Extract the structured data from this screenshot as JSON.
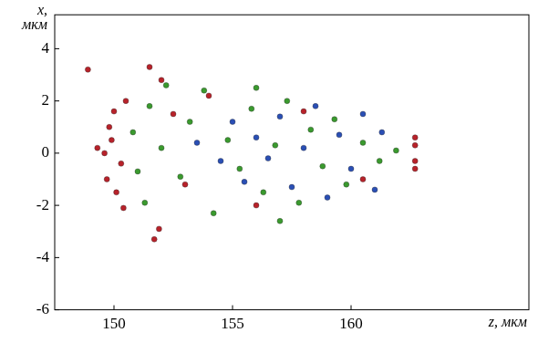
{
  "chart_data": {
    "type": "scatter",
    "x_label": "z, мкм",
    "y_label": "x, мкм",
    "xlim": [
      147.5,
      167.5
    ],
    "xticks": [
      150,
      155,
      160
    ],
    "ylim": [
      -6,
      5.3
    ],
    "yticks": [
      -6,
      -4,
      -2,
      0,
      2,
      4
    ],
    "grid": false,
    "series": [
      {
        "color": "#b8222a",
        "marker": "circle",
        "x": [
          149.6,
          149.8,
          149.7,
          150.0,
          150.1,
          149.9,
          150.3,
          150.5,
          150.4,
          151.5,
          151.7,
          152.0,
          151.9,
          152.5,
          153.0,
          154.0,
          156.0,
          158.0,
          160.5,
          162.7,
          162.7,
          162.7,
          162.7,
          149.3,
          148.9
        ],
        "values": [
          0.0,
          1.0,
          -1.0,
          1.6,
          -1.5,
          0.5,
          -0.4,
          2.0,
          -2.1,
          3.3,
          -3.3,
          2.8,
          -2.9,
          1.5,
          -1.2,
          2.2,
          -2.0,
          1.6,
          -1.0,
          0.6,
          0.3,
          -0.3,
          -0.6,
          0.2,
          3.2
        ]
      },
      {
        "color": "#3a9a2e",
        "marker": "circle",
        "x": [
          150.8,
          151.0,
          151.5,
          151.3,
          152.0,
          152.8,
          153.2,
          153.8,
          154.2,
          154.8,
          155.3,
          155.8,
          156.3,
          156.8,
          157.3,
          157.8,
          158.3,
          158.8,
          159.3,
          159.8,
          160.5,
          161.2,
          161.9,
          152.2,
          156.0,
          157.0
        ],
        "values": [
          0.8,
          -0.7,
          1.8,
          -1.9,
          0.2,
          -0.9,
          1.2,
          2.4,
          -2.3,
          0.5,
          -0.6,
          1.7,
          -1.5,
          0.3,
          2.0,
          -1.9,
          0.9,
          -0.5,
          1.3,
          -1.2,
          0.4,
          -0.3,
          0.1,
          2.6,
          2.5,
          -2.6
        ]
      },
      {
        "color": "#2a4fb5",
        "marker": "circle",
        "x": [
          155.0,
          155.5,
          156.0,
          156.5,
          157.0,
          157.5,
          158.0,
          158.5,
          159.0,
          159.5,
          160.0,
          160.5,
          161.0,
          161.3,
          154.5,
          153.5
        ],
        "values": [
          1.2,
          -1.1,
          0.6,
          -0.2,
          1.4,
          -1.3,
          0.2,
          1.8,
          -1.7,
          0.7,
          -0.6,
          1.5,
          -1.4,
          0.8,
          -0.3,
          0.4
        ]
      }
    ]
  }
}
